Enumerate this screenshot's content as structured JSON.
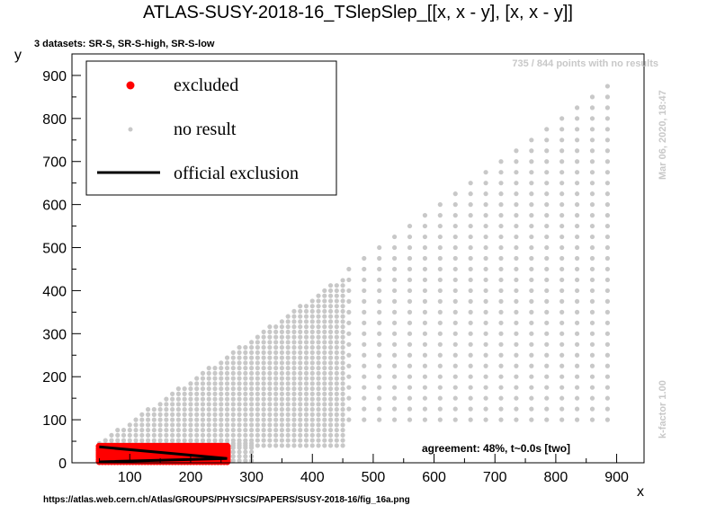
{
  "colors": {
    "excluded": "#ff0000",
    "no_result": "#c8c8c8",
    "official": "#000000",
    "watermark": "#c8c8c8"
  },
  "chart_data": {
    "type": "scatter",
    "title": "ATLAS-SUSY-2018-16_TSlepSlep_[[x, x - y], [x, x - y]]",
    "subtitle": "3 datasets: SR-S, SR-S-high, SR-S-low",
    "xlabel": "x",
    "ylabel": "y",
    "xlim": [
      5,
      945
    ],
    "ylim": [
      0,
      950
    ],
    "x_ticks": [
      100,
      200,
      300,
      400,
      500,
      600,
      700,
      800,
      900
    ],
    "y_ticks": [
      0,
      100,
      200,
      300,
      400,
      500,
      600,
      700,
      800,
      900
    ],
    "legend": {
      "placement": "top-left",
      "entries": [
        "excluded",
        "no result",
        "official exclusion"
      ]
    },
    "points_note": "735 / 844 points with no results",
    "date_note": "Mar 06, 2020, 18:47",
    "kfactor_note": "k-factor 1.00",
    "agreement": "agreement: 48%, t~0.0s [two]",
    "source_url": "https://atlas.web.cern.ch/Atlas/GROUPS/PHYSICS/PAPERS/SUSY-2018-16/fig_16a.png",
    "series": [
      {
        "name": "excluded",
        "marker": "circle",
        "grid": {
          "x_from": 50,
          "x_to": 260,
          "x_step": 5,
          "y_values": [
            3,
            8,
            13,
            18,
            23,
            28,
            33,
            38
          ]
        }
      },
      {
        "name": "no result",
        "marker": "dot",
        "low_strip": {
          "x_from": 50,
          "x_to": 300,
          "x_step": 10,
          "y_values": [
            5,
            15,
            25,
            35,
            45
          ]
        },
        "band": {
          "x_from": 60,
          "x_to": 450,
          "x_step": 10,
          "y_min": 40,
          "y_max_ratio": 0.96,
          "y_step": 12
        },
        "grid": {
          "x_from": 460,
          "x_to": 900,
          "x_step": 25,
          "y_min": 100,
          "y_max_ratio": 0.99,
          "y_step": 25
        }
      },
      {
        "name": "official exclusion",
        "line": [
          [
            50,
            37
          ],
          [
            260,
            10
          ],
          [
            50,
            2
          ]
        ]
      }
    ]
  }
}
